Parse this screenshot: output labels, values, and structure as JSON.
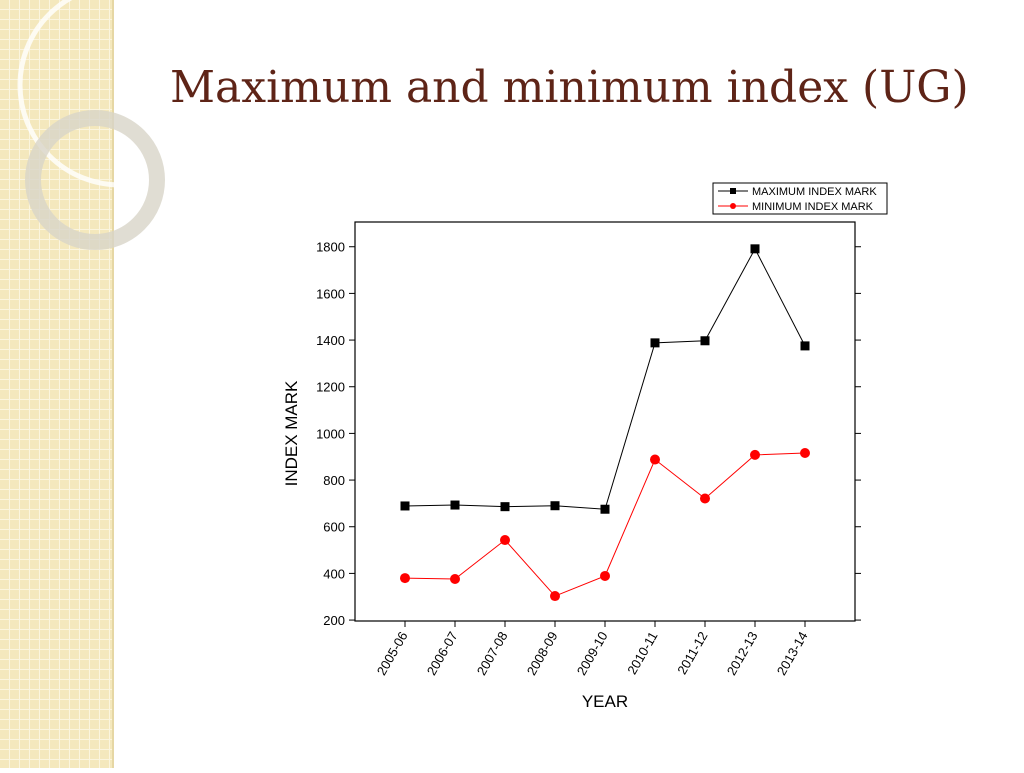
{
  "chart_data": {
    "type": "line",
    "title": "Maximum and minimum index (UG)",
    "xlabel": "YEAR",
    "ylabel": "INDEX MARK",
    "categories": [
      "2005-06",
      "2006-07",
      "2007-08",
      "2008-09",
      "2009-10",
      "2010-11",
      "2011-12",
      "2012-13",
      "2013-14"
    ],
    "series": [
      {
        "name": "MAXIMUM INDEX MARK",
        "color": "#000000",
        "marker": "square",
        "values": [
          689,
          693,
          686,
          690,
          675,
          1388,
          1397,
          1791,
          1375
        ]
      },
      {
        "name": "MINIMUM INDEX MARK",
        "color": "#ff0000",
        "marker": "circle",
        "values": [
          380,
          376,
          543,
          303,
          389,
          888,
          721,
          908,
          916
        ]
      }
    ],
    "ylim": [
      196,
      1906
    ],
    "yticks": [
      200,
      400,
      600,
      800,
      1000,
      1200,
      1400,
      1600,
      1800
    ],
    "legend": "top-right"
  }
}
